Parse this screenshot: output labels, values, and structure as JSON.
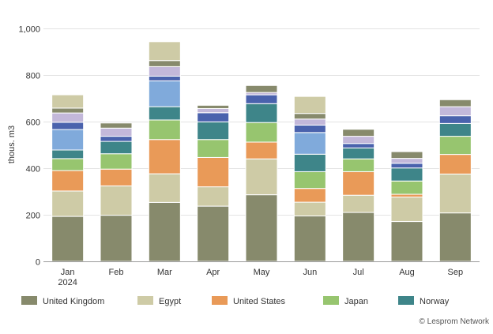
{
  "chart_data": {
    "type": "bar",
    "stacked": true,
    "title": "",
    "xlabel": "",
    "ylabel": "thous. m3",
    "ylim": [
      0,
      1000
    ],
    "yticks": [
      "0",
      "200",
      "400",
      "600",
      "800",
      "1,000"
    ],
    "ytick_values": [
      0,
      200,
      400,
      600,
      800,
      1000
    ],
    "grid": true,
    "legend_position": "bottom",
    "categories": [
      "Jan",
      "Feb",
      "Mar",
      "Apr",
      "May",
      "Jun",
      "Jul",
      "Aug",
      "Sep"
    ],
    "category_sublabels": [
      "2024",
      "",
      "",
      "",
      "",
      "",
      "",
      "",
      ""
    ],
    "series": [
      {
        "name": "United Kingdom",
        "color": "#878a6c",
        "values": [
          193,
          198,
          253,
          237,
          286,
          195,
          210,
          171,
          208
        ]
      },
      {
        "name": "Egypt",
        "color": "#cecba6",
        "values": [
          109,
          126,
          123,
          83,
          154,
          59,
          74,
          105,
          167
        ]
      },
      {
        "name": "United States",
        "color": "#e99a58",
        "values": [
          88,
          72,
          147,
          126,
          72,
          59,
          101,
          12,
          84
        ]
      },
      {
        "name": "Japan",
        "color": "#97c56f",
        "values": [
          51,
          66,
          84,
          77,
          84,
          72,
          55,
          57,
          78
        ]
      },
      {
        "name": "Norway",
        "color": "#3e8589",
        "values": [
          37,
          53,
          57,
          76,
          81,
          75,
          47,
          56,
          55
        ]
      },
      {
        "name": "",
        "color": "#80aadb",
        "values": [
          88,
          0,
          111,
          0,
          0,
          93,
          0,
          0,
          0
        ]
      },
      {
        "name": "",
        "color": "#4a62ad",
        "values": [
          31,
          22,
          20,
          39,
          38,
          32,
          19,
          20,
          33
        ]
      },
      {
        "name": "",
        "color": "#c3b8da",
        "values": [
          40,
          35,
          41,
          18,
          10,
          26,
          31,
          21,
          39
        ]
      },
      {
        "name": "",
        "color": "#878a6c",
        "values": [
          21,
          22,
          26,
          14,
          30,
          24,
          30,
          29,
          30
        ]
      },
      {
        "name": "",
        "color": "#cecba6",
        "values": [
          57,
          0,
          81,
          0,
          0,
          73,
          0,
          0,
          0
        ]
      }
    ],
    "credit": "© Lesprom Network"
  }
}
